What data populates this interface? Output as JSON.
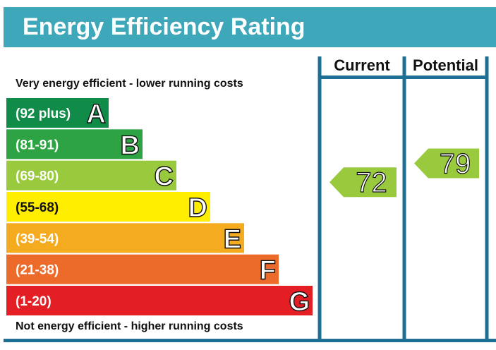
{
  "header": {
    "title": "Energy Efficiency Rating"
  },
  "captions": {
    "top": "Very energy efficient - lower running costs",
    "bottom": "Not energy efficient - higher running costs"
  },
  "chart_data": {
    "type": "bar",
    "columns": [
      "Current",
      "Potential"
    ],
    "bands": [
      {
        "range": "(92 plus)",
        "letter": "A",
        "color": "#108b48",
        "min": 92,
        "max": 100
      },
      {
        "range": "(81-91)",
        "letter": "B",
        "color": "#2ea343",
        "min": 81,
        "max": 91
      },
      {
        "range": "(69-80)",
        "letter": "C",
        "color": "#99c93c",
        "min": 69,
        "max": 80
      },
      {
        "range": "(55-68)",
        "letter": "D",
        "color": "#ffee00",
        "min": 55,
        "max": 68
      },
      {
        "range": "(39-54)",
        "letter": "E",
        "color": "#f5ab1f",
        "min": 39,
        "max": 54
      },
      {
        "range": "(21-38)",
        "letter": "F",
        "color": "#ec6a2a",
        "min": 21,
        "max": 38
      },
      {
        "range": "(1-20)",
        "letter": "G",
        "color": "#e31e25",
        "min": 1,
        "max": 20
      }
    ],
    "ratings": [
      {
        "column": "Current",
        "value": 72,
        "band": "C",
        "color": "#99c93c"
      },
      {
        "column": "Potential",
        "value": 79,
        "band": "C",
        "color": "#99c93c"
      }
    ],
    "frame_color": "#1e6f93"
  }
}
